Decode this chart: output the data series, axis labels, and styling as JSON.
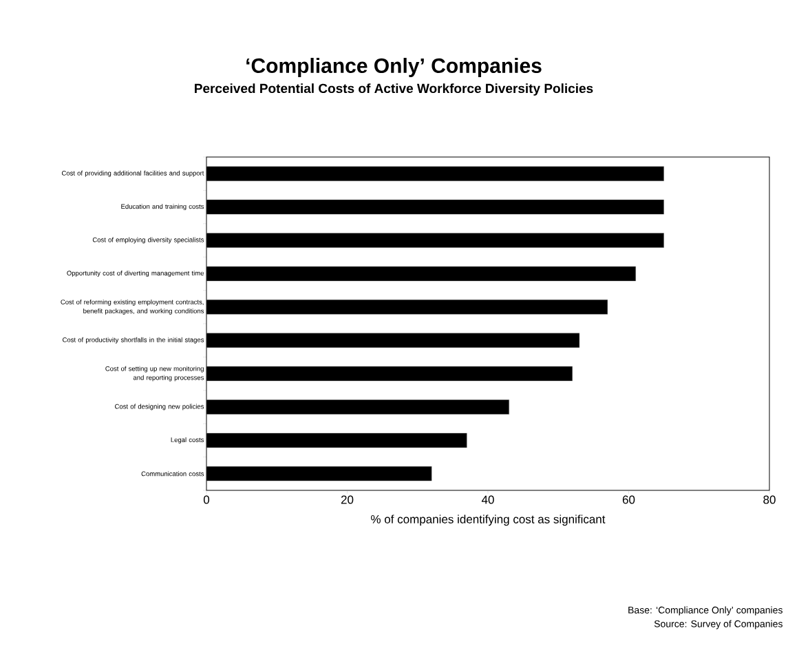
{
  "chart_data": {
    "type": "bar",
    "orientation": "horizontal",
    "title": "‘Compliance Only’ Companies",
    "subtitle": "Perceived Potential Costs of Active Workforce Diversity Policies",
    "xlabel": "% of companies identifying cost as significant",
    "categories": [
      "Cost of providing additional facilities and support",
      "Education and training costs",
      "Cost of employing diversity specialists",
      "Opportunity cost of diverting management time",
      "Cost of reforming existing employment contracts, benefit packages, and working conditions",
      "Cost of productivity shortfalls in the initial stages",
      "Cost of setting up new monitoring and reporting processes",
      "Cost of designing new policies",
      "Legal costs",
      "Communication costs"
    ],
    "values": [
      65,
      65,
      65,
      61,
      57,
      53,
      52,
      43,
      37,
      32
    ],
    "color": "#000000",
    "xlim": [
      0,
      80
    ],
    "xticks": [
      0,
      20,
      40,
      60,
      80
    ],
    "annotations": [
      "Base: ‘Compliance Only’ companies",
      "Source: Survey of Companies"
    ]
  }
}
